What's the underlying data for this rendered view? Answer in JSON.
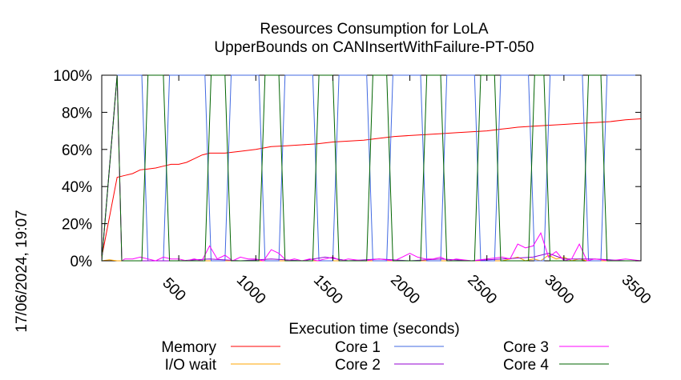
{
  "chart_data": {
    "type": "line",
    "title": "Resources Consumption for LoLA",
    "subtitle": "UpperBounds on CANInsertWithFailure-PT-050",
    "xlabel": "Execution time (seconds)",
    "ylabel": "",
    "side_label": "17/06/2024, 19:07",
    "xlim": [
      0,
      3500
    ],
    "ylim": [
      0,
      100
    ],
    "x_ticks": [
      500,
      1000,
      1500,
      2000,
      2500,
      3000,
      3500
    ],
    "y_ticks": [
      0,
      20,
      40,
      60,
      80,
      100
    ],
    "y_tick_labels": [
      "0%",
      "20%",
      "40%",
      "60%",
      "80%",
      "100%"
    ],
    "legend_position": "bottom",
    "series": [
      {
        "name": "Memory",
        "color": "#ff0000",
        "points": [
          [
            0,
            2
          ],
          [
            100,
            45
          ],
          [
            150,
            46
          ],
          [
            200,
            47
          ],
          [
            250,
            49
          ],
          [
            300,
            49.5
          ],
          [
            350,
            50
          ],
          [
            400,
            51
          ],
          [
            450,
            52
          ],
          [
            500,
            52
          ],
          [
            550,
            53
          ],
          [
            600,
            55
          ],
          [
            650,
            57
          ],
          [
            700,
            58
          ],
          [
            800,
            58
          ],
          [
            900,
            59
          ],
          [
            1000,
            60
          ],
          [
            1100,
            61.5
          ],
          [
            1200,
            62
          ],
          [
            1300,
            62.5
          ],
          [
            1400,
            63
          ],
          [
            1500,
            64
          ],
          [
            1600,
            64.5
          ],
          [
            1700,
            65
          ],
          [
            1800,
            66
          ],
          [
            1900,
            67
          ],
          [
            2000,
            67.5
          ],
          [
            2100,
            68
          ],
          [
            2200,
            68.5
          ],
          [
            2300,
            69
          ],
          [
            2400,
            69.5
          ],
          [
            2500,
            70
          ],
          [
            2600,
            71
          ],
          [
            2700,
            72
          ],
          [
            2800,
            72.5
          ],
          [
            2900,
            73
          ],
          [
            3000,
            73.5
          ],
          [
            3100,
            74
          ],
          [
            3200,
            74.5
          ],
          [
            3300,
            75
          ],
          [
            3400,
            76
          ],
          [
            3500,
            76.5
          ]
        ]
      },
      {
        "name": "I/O wait",
        "color": "#ffa500",
        "points": [
          [
            0,
            0
          ],
          [
            50,
            0.5
          ],
          [
            100,
            0
          ],
          [
            200,
            0
          ],
          [
            300,
            0
          ],
          [
            400,
            0
          ],
          [
            500,
            0
          ],
          [
            600,
            0
          ],
          [
            700,
            0
          ],
          [
            800,
            0
          ],
          [
            900,
            0
          ],
          [
            1000,
            0
          ],
          [
            1100,
            0
          ],
          [
            1200,
            0
          ],
          [
            1300,
            0
          ],
          [
            1400,
            0
          ],
          [
            1500,
            0
          ],
          [
            1600,
            0
          ],
          [
            1700,
            0
          ],
          [
            1800,
            0
          ],
          [
            1900,
            0
          ],
          [
            2000,
            0
          ],
          [
            2100,
            0
          ],
          [
            2200,
            0
          ],
          [
            2300,
            0
          ],
          [
            2400,
            0
          ],
          [
            2500,
            0
          ],
          [
            2600,
            0
          ],
          [
            2650,
            1
          ],
          [
            2700,
            2
          ],
          [
            2750,
            0
          ],
          [
            2800,
            1
          ],
          [
            2850,
            0
          ],
          [
            2900,
            3
          ],
          [
            2950,
            1
          ],
          [
            3000,
            2
          ],
          [
            3050,
            0
          ],
          [
            3100,
            1
          ],
          [
            3150,
            0
          ],
          [
            3200,
            0
          ],
          [
            3300,
            0
          ],
          [
            3400,
            0
          ],
          [
            3500,
            0
          ]
        ]
      },
      {
        "name": "Core 1",
        "color": "#4169e1",
        "points": [
          [
            0,
            0
          ],
          [
            100,
            100
          ],
          [
            260,
            100
          ],
          [
            300,
            0
          ],
          [
            400,
            0
          ],
          [
            440,
            100
          ],
          [
            670,
            100
          ],
          [
            710,
            0
          ],
          [
            800,
            0
          ],
          [
            840,
            100
          ],
          [
            1020,
            100
          ],
          [
            1060,
            0
          ],
          [
            1150,
            0
          ],
          [
            1190,
            100
          ],
          [
            1370,
            100
          ],
          [
            1410,
            0
          ],
          [
            1500,
            0
          ],
          [
            1540,
            100
          ],
          [
            1720,
            100
          ],
          [
            1760,
            0
          ],
          [
            1850,
            0
          ],
          [
            1890,
            100
          ],
          [
            2070,
            100
          ],
          [
            2110,
            0
          ],
          [
            2200,
            0
          ],
          [
            2240,
            100
          ],
          [
            2420,
            100
          ],
          [
            2460,
            0
          ],
          [
            2550,
            0
          ],
          [
            2590,
            100
          ],
          [
            2770,
            100
          ],
          [
            2810,
            0
          ],
          [
            2870,
            0
          ],
          [
            2910,
            100
          ],
          [
            3120,
            100
          ],
          [
            3160,
            0
          ],
          [
            3240,
            0
          ],
          [
            3280,
            100
          ],
          [
            3500,
            100
          ]
        ]
      },
      {
        "name": "Core 2",
        "color": "#9400d3",
        "points": [
          [
            0,
            0
          ],
          [
            100,
            100
          ],
          [
            130,
            0
          ],
          [
            300,
            0
          ],
          [
            500,
            0
          ],
          [
            700,
            1
          ],
          [
            900,
            0
          ],
          [
            1100,
            1
          ],
          [
            1300,
            0
          ],
          [
            1450,
            2
          ],
          [
            1600,
            0
          ],
          [
            1800,
            1
          ],
          [
            2000,
            0
          ],
          [
            2200,
            1
          ],
          [
            2400,
            0
          ],
          [
            2600,
            1
          ],
          [
            2800,
            2
          ],
          [
            2900,
            4
          ],
          [
            3000,
            1
          ],
          [
            3200,
            1
          ],
          [
            3400,
            0
          ],
          [
            3500,
            0
          ]
        ]
      },
      {
        "name": "Core 3",
        "color": "#ff00ff",
        "points": [
          [
            0,
            0
          ],
          [
            100,
            100
          ],
          [
            130,
            0
          ],
          [
            150,
            1
          ],
          [
            200,
            1
          ],
          [
            250,
            2
          ],
          [
            300,
            1
          ],
          [
            350,
            0
          ],
          [
            400,
            2
          ],
          [
            450,
            1
          ],
          [
            500,
            1
          ],
          [
            550,
            0
          ],
          [
            600,
            1
          ],
          [
            650,
            0
          ],
          [
            700,
            8
          ],
          [
            750,
            1
          ],
          [
            800,
            3
          ],
          [
            850,
            0
          ],
          [
            900,
            2
          ],
          [
            950,
            1
          ],
          [
            1000,
            1
          ],
          [
            1050,
            0
          ],
          [
            1100,
            6
          ],
          [
            1150,
            4
          ],
          [
            1200,
            0
          ],
          [
            1250,
            1
          ],
          [
            1300,
            0
          ],
          [
            1350,
            1
          ],
          [
            1400,
            0
          ],
          [
            1450,
            1
          ],
          [
            1500,
            2
          ],
          [
            1550,
            0
          ],
          [
            1600,
            1
          ],
          [
            1700,
            0
          ],
          [
            1800,
            1
          ],
          [
            1900,
            0
          ],
          [
            1950,
            2
          ],
          [
            2000,
            4
          ],
          [
            2050,
            2
          ],
          [
            2100,
            1
          ],
          [
            2150,
            1
          ],
          [
            2200,
            2
          ],
          [
            2250,
            0
          ],
          [
            2300,
            1
          ],
          [
            2400,
            0
          ],
          [
            2500,
            1
          ],
          [
            2600,
            2
          ],
          [
            2650,
            1
          ],
          [
            2700,
            9
          ],
          [
            2750,
            7
          ],
          [
            2800,
            8
          ],
          [
            2850,
            15
          ],
          [
            2900,
            2
          ],
          [
            2950,
            5
          ],
          [
            3000,
            0
          ],
          [
            3050,
            1
          ],
          [
            3100,
            9
          ],
          [
            3150,
            0
          ],
          [
            3200,
            1
          ],
          [
            3300,
            0
          ],
          [
            3400,
            1
          ],
          [
            3500,
            0
          ]
        ]
      },
      {
        "name": "Core 4",
        "color": "#006400",
        "points": [
          [
            0,
            0
          ],
          [
            100,
            100
          ],
          [
            130,
            0
          ],
          [
            260,
            0
          ],
          [
            300,
            100
          ],
          [
            400,
            100
          ],
          [
            440,
            0
          ],
          [
            670,
            0
          ],
          [
            710,
            100
          ],
          [
            800,
            100
          ],
          [
            840,
            0
          ],
          [
            1020,
            0
          ],
          [
            1060,
            100
          ],
          [
            1150,
            100
          ],
          [
            1190,
            0
          ],
          [
            1370,
            0
          ],
          [
            1410,
            100
          ],
          [
            1500,
            100
          ],
          [
            1540,
            0
          ],
          [
            1720,
            0
          ],
          [
            1760,
            100
          ],
          [
            1850,
            100
          ],
          [
            1890,
            0
          ],
          [
            2070,
            0
          ],
          [
            2110,
            100
          ],
          [
            2200,
            100
          ],
          [
            2240,
            0
          ],
          [
            2420,
            0
          ],
          [
            2460,
            100
          ],
          [
            2550,
            100
          ],
          [
            2590,
            0
          ],
          [
            2770,
            0
          ],
          [
            2810,
            100
          ],
          [
            2870,
            100
          ],
          [
            2910,
            0
          ],
          [
            3120,
            0
          ],
          [
            3160,
            100
          ],
          [
            3240,
            100
          ],
          [
            3280,
            0
          ],
          [
            3500,
            0
          ]
        ]
      }
    ]
  }
}
